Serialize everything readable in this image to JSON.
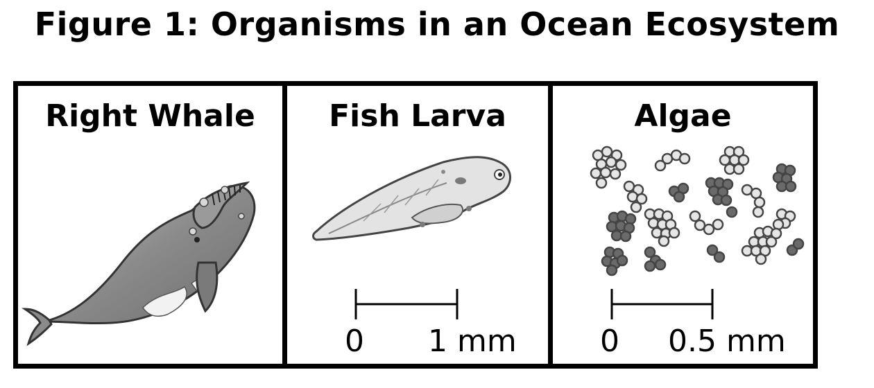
{
  "title": "Figure 1: Organisms in an Ocean Ecosystem",
  "panels": [
    {
      "name": "Right Whale",
      "illustration": "right-whale"
    },
    {
      "name": "Fish Larva",
      "illustration": "fish-larva",
      "scale": {
        "start": "0",
        "end": "1 mm"
      }
    },
    {
      "name": "Algae",
      "illustration": "algae-cells",
      "scale": {
        "start": "0",
        "end": "0.5 mm"
      }
    }
  ]
}
